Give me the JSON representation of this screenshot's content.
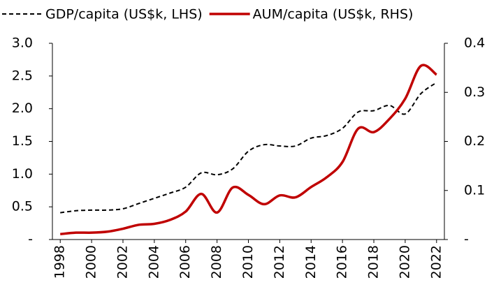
{
  "chart_data": {
    "type": "line",
    "x": [
      1998,
      1999,
      2000,
      2001,
      2002,
      2003,
      2004,
      2005,
      2006,
      2007,
      2008,
      2009,
      2010,
      2011,
      2012,
      2013,
      2014,
      2015,
      2016,
      2017,
      2018,
      2019,
      2020,
      2021,
      2022
    ],
    "series": [
      {
        "name": "GDP/capita (US$k, LHS)",
        "color": "#000000",
        "line_style": "dashed",
        "values": [
          0.41,
          0.44,
          0.45,
          0.45,
          0.47,
          0.55,
          0.63,
          0.71,
          0.8,
          1.02,
          0.99,
          1.08,
          1.35,
          1.45,
          1.43,
          1.43,
          1.55,
          1.59,
          1.7,
          1.95,
          1.97,
          2.05,
          1.92,
          2.23,
          2.4
        ]
      },
      {
        "name": "AUM/capita (US$k, RHS)",
        "color": "#c00000",
        "line_style": "solid",
        "axis": "y2",
        "values": [
          0.011,
          0.014,
          0.014,
          0.016,
          0.022,
          0.03,
          0.032,
          0.04,
          0.057,
          0.093,
          0.055,
          0.106,
          0.091,
          0.072,
          0.09,
          0.086,
          0.107,
          0.127,
          0.158,
          0.226,
          0.219,
          0.246,
          0.287,
          0.354,
          0.336
        ]
      }
    ],
    "xlim": [
      1997.5,
      2022.5
    ],
    "xticks": [
      1998,
      2000,
      2002,
      2004,
      2006,
      2008,
      2010,
      2012,
      2014,
      2016,
      2018,
      2020,
      2022
    ],
    "ylim": [
      0,
      3
    ],
    "yticks": [
      {
        "value": 0,
        "label": "-"
      },
      0.5,
      {
        "value": 1,
        "label": "1.0"
      },
      1.5,
      {
        "value": 2,
        "label": "2.0"
      },
      2.5,
      {
        "value": 3,
        "label": "3.0"
      }
    ],
    "y2lim": [
      0,
      0.4
    ],
    "y2ticks": [
      {
        "value": 0,
        "label": "-"
      },
      0.1,
      0.2,
      0.3,
      0.4
    ],
    "legend": "top"
  }
}
